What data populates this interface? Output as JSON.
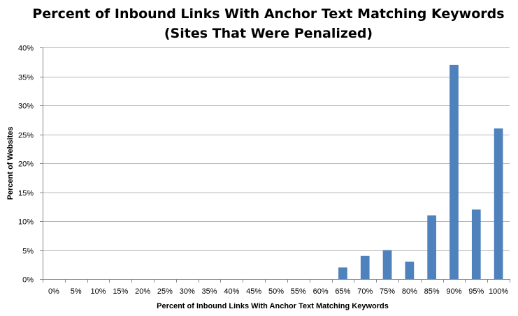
{
  "chart_data": {
    "type": "bar",
    "title": [
      "Percent of Inbound Links With Anchor Text Matching Keywords",
      "(Sites That Were Penalized)"
    ],
    "xlabel": "Percent of Inbound  Links With Anchor Text Matching  Keywords",
    "ylabel": "Percent of Websites",
    "categories": [
      "0%",
      "5%",
      "10%",
      "15%",
      "20%",
      "25%",
      "30%",
      "35%",
      "40%",
      "45%",
      "50%",
      "55%",
      "60%",
      "65%",
      "70%",
      "75%",
      "80%",
      "85%",
      "90%",
      "95%",
      "100%"
    ],
    "values": [
      0,
      0,
      0,
      0,
      0,
      0,
      0,
      0,
      0,
      0,
      0,
      0,
      0,
      2,
      4,
      5,
      3,
      11,
      37,
      12,
      26
    ],
    "ylim": [
      0,
      40
    ],
    "yticks": [
      "0%",
      "5%",
      "10%",
      "15%",
      "20%",
      "25%",
      "30%",
      "35%",
      "40%"
    ],
    "grid": true,
    "legend": "none",
    "color": "#4f81bd"
  }
}
